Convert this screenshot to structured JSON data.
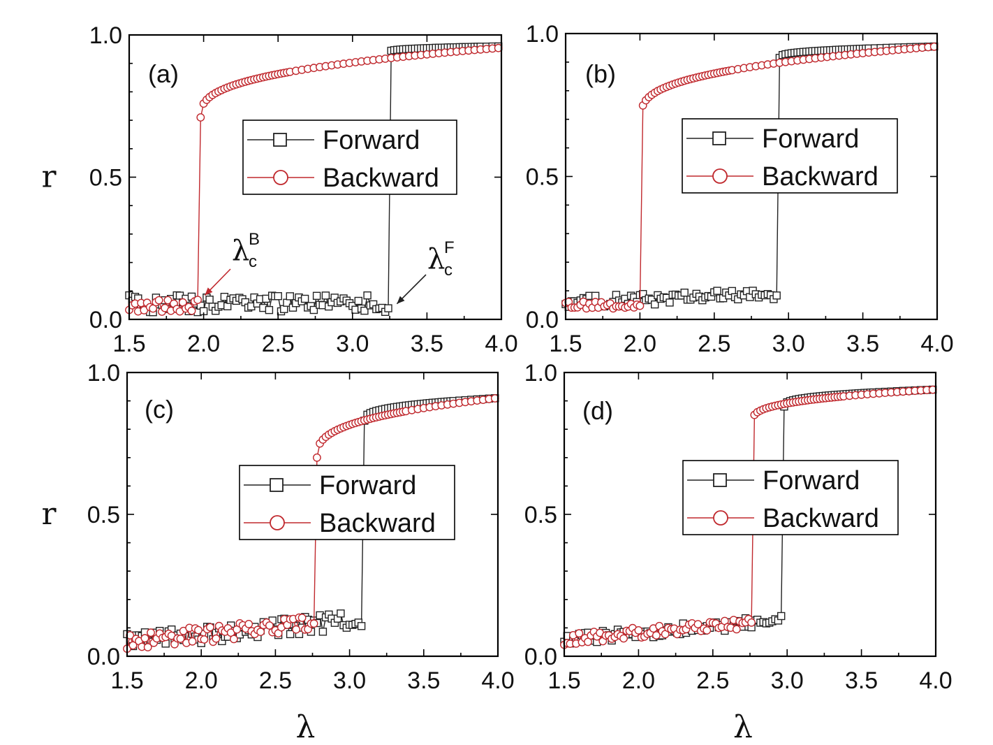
{
  "colors": {
    "forward": "#222222",
    "backward": "#c0282d",
    "axis": "#000000"
  },
  "chart_data": [
    {
      "type": "line",
      "panel_label": "(a)",
      "xlim": [
        1.5,
        4.0
      ],
      "ylim": [
        0.0,
        1.0
      ],
      "x_ticks": [
        "1.5",
        "2.0",
        "2.5",
        "3.0",
        "3.5",
        "4.0"
      ],
      "y_ticks": [
        "0.0",
        "0.5",
        "1.0"
      ],
      "ylabel": "r",
      "xlabel": "",
      "legend": {
        "placement": "center",
        "entries": [
          "Forward",
          "Backward"
        ]
      },
      "annotations": [
        {
          "main": "λ",
          "sup": "B",
          "sub": "c",
          "points_to": [
            1.98,
            0.07
          ]
        },
        {
          "main": "λ",
          "sup": "F",
          "sub": "c",
          "points_to": [
            3.27,
            0.04
          ]
        }
      ],
      "series": [
        {
          "name": "Forward",
          "marker": "square",
          "low_level": 0.055,
          "low_noise": 0.03,
          "jump_at": 3.25,
          "upper_start": 0.94,
          "upper_end": 0.96
        },
        {
          "name": "Backward",
          "marker": "circle",
          "low_level": 0.045,
          "low_noise": 0.025,
          "jump_at": 1.98,
          "upper_start": 0.71,
          "upper_end": 0.955
        }
      ]
    },
    {
      "type": "line",
      "panel_label": "(b)",
      "xlim": [
        1.5,
        4.0
      ],
      "ylim": [
        0.0,
        1.0
      ],
      "x_ticks": [
        "1.5",
        "2.0",
        "2.5",
        "3.0",
        "3.5",
        "4.0"
      ],
      "y_ticks": [
        "0.0",
        "0.5",
        "1.0"
      ],
      "ylabel": "",
      "xlabel": "",
      "legend": {
        "placement": "right",
        "entries": [
          "Forward",
          "Backward"
        ]
      },
      "series": [
        {
          "name": "Forward",
          "marker": "square",
          "low_level": 0.06,
          "low_noise": 0.02,
          "low_slope": 0.02,
          "jump_at": 2.94,
          "upper_start": 0.915,
          "upper_end": 0.955
        },
        {
          "name": "Backward",
          "marker": "circle",
          "low_level": 0.05,
          "low_noise": 0.012,
          "jump_at": 2.01,
          "upper_start": 0.71,
          "upper_end": 0.955
        }
      ]
    },
    {
      "type": "line",
      "panel_label": "(c)",
      "xlim": [
        1.5,
        4.0
      ],
      "ylim": [
        0.0,
        1.0
      ],
      "x_ticks": [
        "1.5",
        "2.0",
        "2.5",
        "3.0",
        "3.5",
        "4.0"
      ],
      "y_ticks": [
        "0.0",
        "0.5",
        "1.0"
      ],
      "ylabel": "r",
      "xlabel": "λ",
      "legend": {
        "placement": "center-right",
        "entries": [
          "Forward",
          "Backward"
        ]
      },
      "series": [
        {
          "name": "Forward",
          "marker": "square",
          "low_level": 0.05,
          "low_noise": 0.03,
          "low_slope": 0.05,
          "jump_at": 3.1,
          "upper_start": 0.83,
          "upper_end": 0.91
        },
        {
          "name": "Backward",
          "marker": "circle",
          "low_level": 0.05,
          "low_noise": 0.03,
          "low_slope": 0.05,
          "jump_at": 2.78,
          "upper_start": 0.7,
          "upper_end": 0.91
        }
      ]
    },
    {
      "type": "line",
      "panel_label": "(d)",
      "xlim": [
        1.5,
        4.0
      ],
      "ylim": [
        0.0,
        1.0
      ],
      "x_ticks": [
        "1.5",
        "2.0",
        "2.5",
        "3.0",
        "3.5",
        "4.0"
      ],
      "y_ticks": [
        "0.0",
        "0.5",
        "1.0"
      ],
      "ylabel": "",
      "xlabel": "λ",
      "legend": {
        "placement": "right",
        "entries": [
          "Forward",
          "Backward"
        ]
      },
      "series": [
        {
          "name": "Forward",
          "marker": "square",
          "low_level": 0.06,
          "low_noise": 0.02,
          "low_slope": 0.045,
          "jump_at": 2.98,
          "upper_start": 0.88,
          "upper_end": 0.94
        },
        {
          "name": "Backward",
          "marker": "circle",
          "low_level": 0.06,
          "low_noise": 0.02,
          "low_slope": 0.045,
          "jump_at": 2.77,
          "upper_start": 0.83,
          "upper_end": 0.94
        }
      ]
    }
  ]
}
